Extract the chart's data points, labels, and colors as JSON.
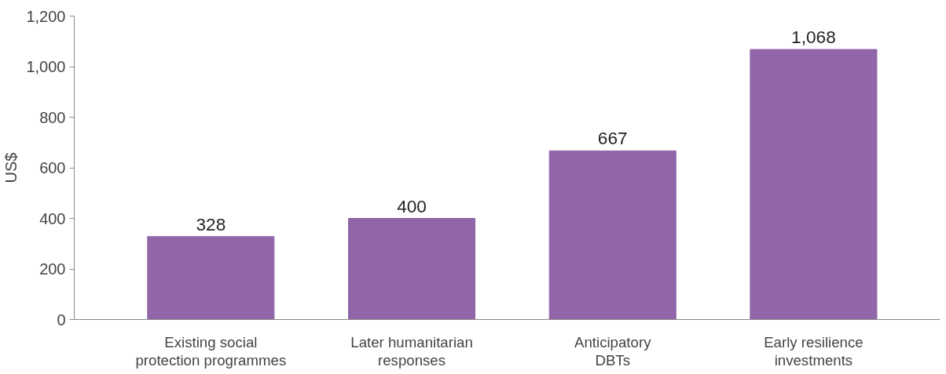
{
  "chart_data": {
    "type": "bar",
    "ylabel": "US$",
    "categories": [
      "Existing social\nprotection programmes",
      "Later humanitarian\nresponses",
      "Anticipatory\nDBTs",
      "Early resilience\ninvestments"
    ],
    "values": [
      328,
      400,
      667,
      1068
    ],
    "color": "#9166a8",
    "value_labels": [
      "328",
      "400",
      "667",
      "1,068"
    ],
    "ylim": [
      0,
      1200
    ],
    "yticks": [
      0,
      200,
      400,
      600,
      800,
      {
        "value": 1000,
        "label": "1,000"
      },
      {
        "value": 1200,
        "label": "1,200"
      }
    ],
    "grid": false
  }
}
